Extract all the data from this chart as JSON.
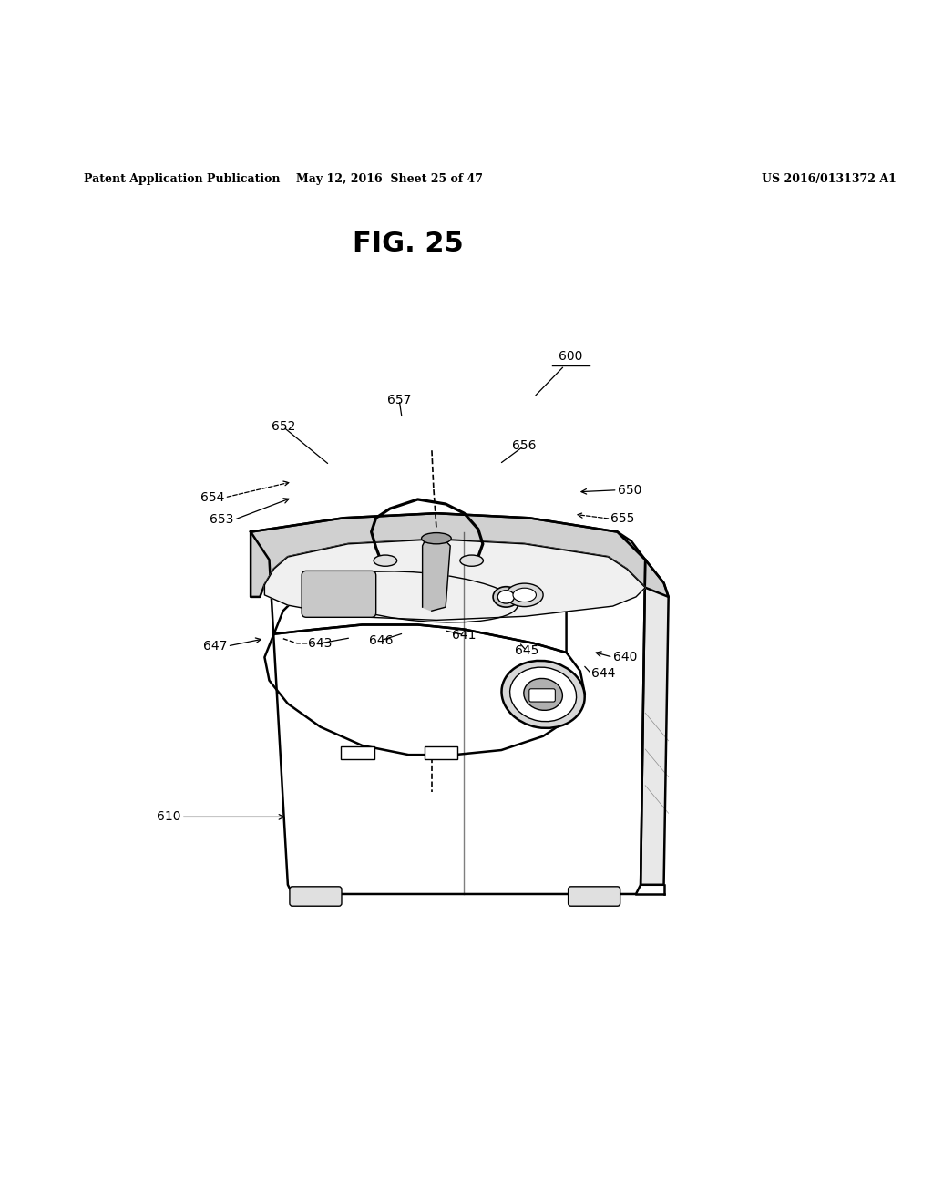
{
  "header_left": "Patent Application Publication",
  "header_mid": "May 12, 2016  Sheet 25 of 47",
  "header_right": "US 2016/0131372 A1",
  "fig_title": "FIG. 25",
  "bg_color": "#ffffff",
  "text_color": "#000000",
  "line_color": "#000000"
}
